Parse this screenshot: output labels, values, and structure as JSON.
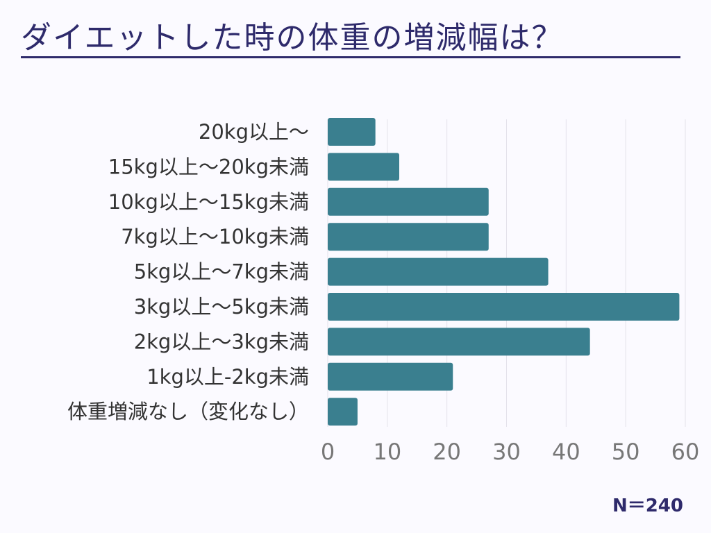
{
  "header": {
    "title": "ダイエットした時の体重の増減幅は？"
  },
  "note": "N＝240",
  "colors": {
    "bar": "#3a7f8f",
    "grid": "#e3e1ea",
    "label": "#333333",
    "tick": "#777777",
    "title": "#2e2a6b"
  },
  "chart_data": {
    "type": "bar",
    "orientation": "horizontal",
    "categories": [
      "20kg以上～",
      "15kg以上～20kg未満",
      "10kg以上～15kg未満",
      "7kg以上～10kg未満",
      "5kg以上～7kg未満",
      "3kg以上～5kg未満",
      "2kg以上～3kg未満",
      "1kg以上-2kg未満",
      "体重増減なし（変化なし）"
    ],
    "values": [
      8,
      12,
      27,
      27,
      37,
      59,
      44,
      21,
      5
    ],
    "xlim": [
      0,
      60
    ],
    "xticks": [
      0,
      10,
      20,
      30,
      40,
      50,
      60
    ],
    "grid": true
  }
}
